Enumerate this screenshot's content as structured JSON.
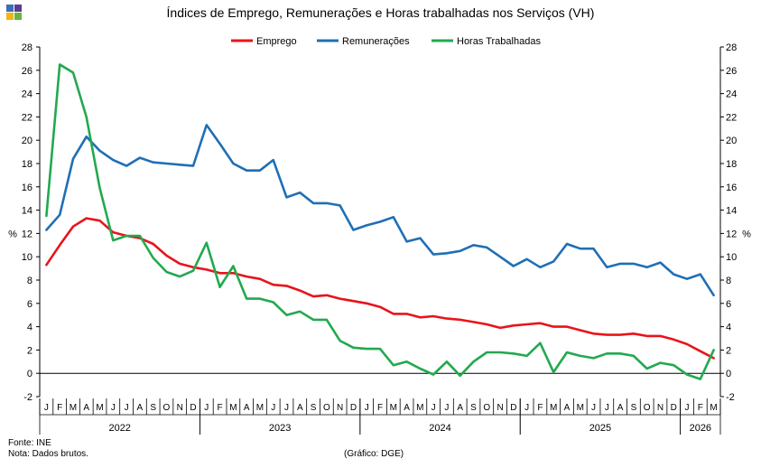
{
  "colors": {
    "emprego": "#e8141b",
    "remuneracoes": "#1f6fb5",
    "horas": "#22a94f",
    "logo": [
      "#3b6fb6",
      "#5a3d8e",
      "#f2b418",
      "#6ab245"
    ]
  },
  "source": "Fonte: INE",
  "note": "Nota: Dados brutos.",
  "credit": "(Gráfico: DGE)",
  "chart_data": {
    "type": "line",
    "title": "Índices de Emprego, Remunerações e Horas trabalhadas  nos Serviços (VH)",
    "ylabel_left": "%",
    "ylabel_right": "%",
    "ylim": [
      -2,
      28
    ],
    "yticks": [
      -2,
      0,
      2,
      4,
      6,
      8,
      10,
      12,
      14,
      16,
      18,
      20,
      22,
      24,
      26,
      28
    ],
    "legend_position": "top",
    "grid": false,
    "months": [
      "J",
      "F",
      "M",
      "A",
      "M",
      "J",
      "J",
      "A",
      "S",
      "O",
      "N",
      "D",
      "J",
      "F",
      "M",
      "A",
      "M",
      "J",
      "J",
      "A",
      "S",
      "O",
      "N",
      "D",
      "J",
      "F",
      "M",
      "A",
      "M",
      "J",
      "J",
      "A",
      "S",
      "O",
      "N",
      "D",
      "J",
      "F",
      "M",
      "A",
      "M",
      "J",
      "J",
      "A",
      "S",
      "O",
      "N",
      "D",
      "J",
      "F",
      "M"
    ],
    "years": [
      {
        "label": "2022",
        "start": 0,
        "count": 12
      },
      {
        "label": "2023",
        "start": 12,
        "count": 12
      },
      {
        "label": "2024",
        "start": 24,
        "count": 12
      },
      {
        "label": "2025",
        "start": 36,
        "count": 12
      },
      {
        "label": "2026",
        "start": 48,
        "count": 3
      }
    ],
    "series": [
      {
        "name": "Emprego",
        "key": "emprego",
        "values": [
          9.3,
          11.0,
          12.6,
          13.3,
          13.1,
          12.1,
          11.8,
          11.6,
          11.1,
          10.1,
          9.4,
          9.1,
          8.9,
          8.6,
          8.6,
          8.3,
          8.1,
          7.6,
          7.5,
          7.1,
          6.6,
          6.7,
          6.4,
          6.2,
          6.0,
          5.7,
          5.1,
          5.1,
          4.8,
          4.9,
          4.7,
          4.6,
          4.4,
          4.2,
          3.9,
          4.1,
          4.2,
          4.3,
          4.0,
          4.0,
          3.7,
          3.4,
          3.3,
          3.3,
          3.4,
          3.2,
          3.2,
          2.9,
          2.5,
          1.9,
          1.3
        ]
      },
      {
        "name": "Remunerações",
        "key": "remuneracoes",
        "values": [
          12.3,
          13.6,
          18.4,
          20.3,
          19.1,
          18.3,
          17.8,
          18.5,
          18.1,
          18.0,
          17.9,
          17.8,
          21.3,
          19.7,
          18.0,
          17.4,
          17.4,
          18.3,
          15.1,
          15.5,
          14.6,
          14.6,
          14.4,
          12.3,
          12.7,
          13.0,
          13.4,
          11.3,
          11.6,
          10.2,
          10.3,
          10.5,
          11.0,
          10.8,
          10.0,
          9.2,
          9.8,
          9.1,
          9.6,
          11.1,
          10.7,
          10.7,
          9.1,
          9.4,
          9.4,
          9.1,
          9.5,
          8.5,
          8.1,
          8.5,
          6.7
        ]
      },
      {
        "name": "Horas Trabalhadas",
        "key": "horas",
        "values": [
          13.5,
          26.5,
          25.8,
          22.0,
          15.9,
          11.4,
          11.8,
          11.8,
          9.9,
          8.7,
          8.3,
          8.8,
          11.2,
          7.4,
          9.2,
          6.4,
          6.4,
          6.1,
          5.0,
          5.3,
          4.6,
          4.6,
          2.8,
          2.2,
          2.1,
          2.1,
          0.7,
          1.0,
          0.4,
          -0.1,
          1.0,
          -0.2,
          1.0,
          1.8,
          1.8,
          1.7,
          1.5,
          2.6,
          0.1,
          1.8,
          1.5,
          1.3,
          1.7,
          1.7,
          1.5,
          0.4,
          0.9,
          0.7,
          -0.1,
          -0.5,
          2.0
        ]
      }
    ]
  }
}
